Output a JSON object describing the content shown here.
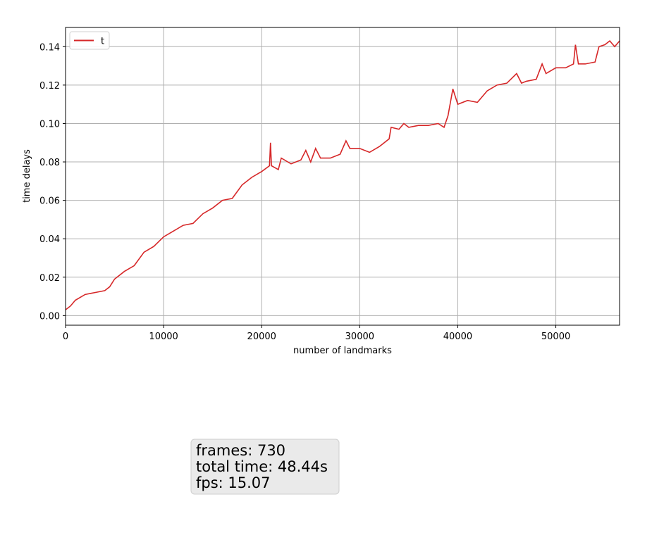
{
  "chart_data": {
    "type": "line",
    "xlabel": "number of landmarks",
    "ylabel": "time delays",
    "x": [
      0,
      500,
      1000,
      2000,
      3000,
      4000,
      4500,
      5000,
      6000,
      7000,
      8000,
      9000,
      10000,
      11000,
      12000,
      13000,
      14000,
      15000,
      16000,
      17000,
      18000,
      19000,
      20000,
      20800,
      20900,
      21000,
      21700,
      22000,
      23000,
      24000,
      24500,
      25000,
      25500,
      26000,
      27000,
      28000,
      28600,
      29000,
      30000,
      31000,
      32000,
      33000,
      33200,
      34000,
      34500,
      35000,
      36000,
      37000,
      38000,
      38600,
      39000,
      39500,
      40000,
      41000,
      42000,
      43000,
      44000,
      45000,
      46000,
      46500,
      47000,
      48000,
      48600,
      49000,
      50000,
      51000,
      51800,
      52000,
      52300,
      53000,
      54000,
      54400,
      55000,
      55500,
      56000,
      56500
    ],
    "series": [
      {
        "name": "t",
        "color": "#d62728",
        "values": [
          0.003,
          0.005,
          0.008,
          0.011,
          0.012,
          0.013,
          0.015,
          0.019,
          0.023,
          0.026,
          0.033,
          0.036,
          0.041,
          0.044,
          0.047,
          0.048,
          0.053,
          0.056,
          0.06,
          0.061,
          0.068,
          0.072,
          0.075,
          0.078,
          0.09,
          0.078,
          0.076,
          0.082,
          0.079,
          0.081,
          0.086,
          0.08,
          0.087,
          0.082,
          0.082,
          0.084,
          0.091,
          0.087,
          0.087,
          0.085,
          0.088,
          0.092,
          0.098,
          0.097,
          0.1,
          0.098,
          0.099,
          0.099,
          0.1,
          0.098,
          0.104,
          0.118,
          0.11,
          0.112,
          0.111,
          0.117,
          0.12,
          0.121,
          0.126,
          0.121,
          0.122,
          0.123,
          0.131,
          0.126,
          0.129,
          0.129,
          0.131,
          0.141,
          0.131,
          0.131,
          0.132,
          0.14,
          0.141,
          0.143,
          0.14,
          0.143
        ]
      }
    ],
    "xlim": [
      0,
      56500
    ],
    "ylim": [
      -0.005,
      0.15
    ],
    "xticks": [
      0,
      10000,
      20000,
      30000,
      40000,
      50000
    ],
    "yticks": [
      {
        "value": 0,
        "label": "0.00"
      },
      {
        "value": 0.02,
        "label": "0.02"
      },
      {
        "value": 0.04,
        "label": "0.04"
      },
      {
        "value": 0.06,
        "label": "0.06"
      },
      {
        "value": 0.08,
        "label": "0.08"
      },
      {
        "value": 0.1,
        "label": "0.10"
      },
      {
        "value": 0.12,
        "label": "0.12"
      },
      {
        "value": 0.14,
        "label": "0.14"
      }
    ],
    "grid": true,
    "legend": "upper left",
    "annotation": [
      "frames: 730",
      "total time: 48.44s",
      "fps: 15.07"
    ]
  }
}
